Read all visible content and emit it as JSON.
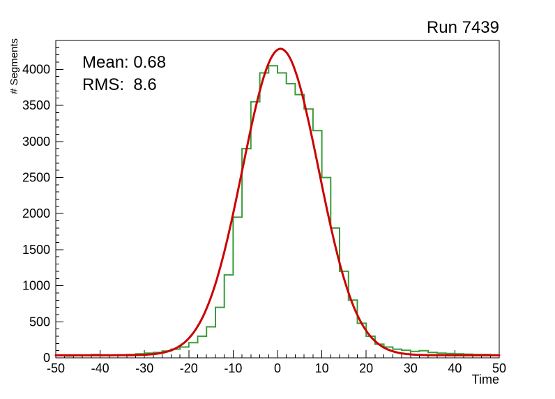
{
  "title": "Run 7439",
  "chart_data": {
    "type": "bar",
    "subtype": "step-histogram-with-gaussian-fit",
    "title": "Run 7439",
    "xlabel": "Time",
    "ylabel": "# Segments",
    "xlim": [
      -50,
      50
    ],
    "ylim": [
      0,
      4400
    ],
    "grid": false,
    "legend": null,
    "x_major_ticks": [
      -50,
      -40,
      -30,
      -20,
      -10,
      0,
      10,
      20,
      30,
      40,
      50
    ],
    "x_minor_step": 2,
    "y_major_step": 500,
    "y_minor_step": 100,
    "bins": {
      "start": -50,
      "width": 2,
      "counts": [
        30,
        25,
        30,
        35,
        45,
        40,
        35,
        40,
        45,
        55,
        65,
        75,
        95,
        120,
        150,
        210,
        300,
        430,
        700,
        1150,
        1950,
        2900,
        3550,
        3950,
        4050,
        3950,
        3800,
        3650,
        3450,
        3150,
        2500,
        1800,
        1200,
        800,
        480,
        300,
        190,
        150,
        120,
        105,
        90,
        100,
        75,
        65,
        60,
        55,
        50,
        45,
        45,
        40
      ]
    },
    "histogram": {
      "name": "time-distribution",
      "color": "#3a9b3a",
      "line_width": 2
    },
    "fit": {
      "shape": "gaussian",
      "mean": 0.68,
      "sigma": 8.6,
      "amplitude": 4250,
      "offset": 35,
      "color": "#cc0000",
      "line_width": 3
    },
    "annotations": [
      {
        "text": "Mean: 0.68"
      },
      {
        "text": "RMS:  8.6"
      }
    ]
  }
}
